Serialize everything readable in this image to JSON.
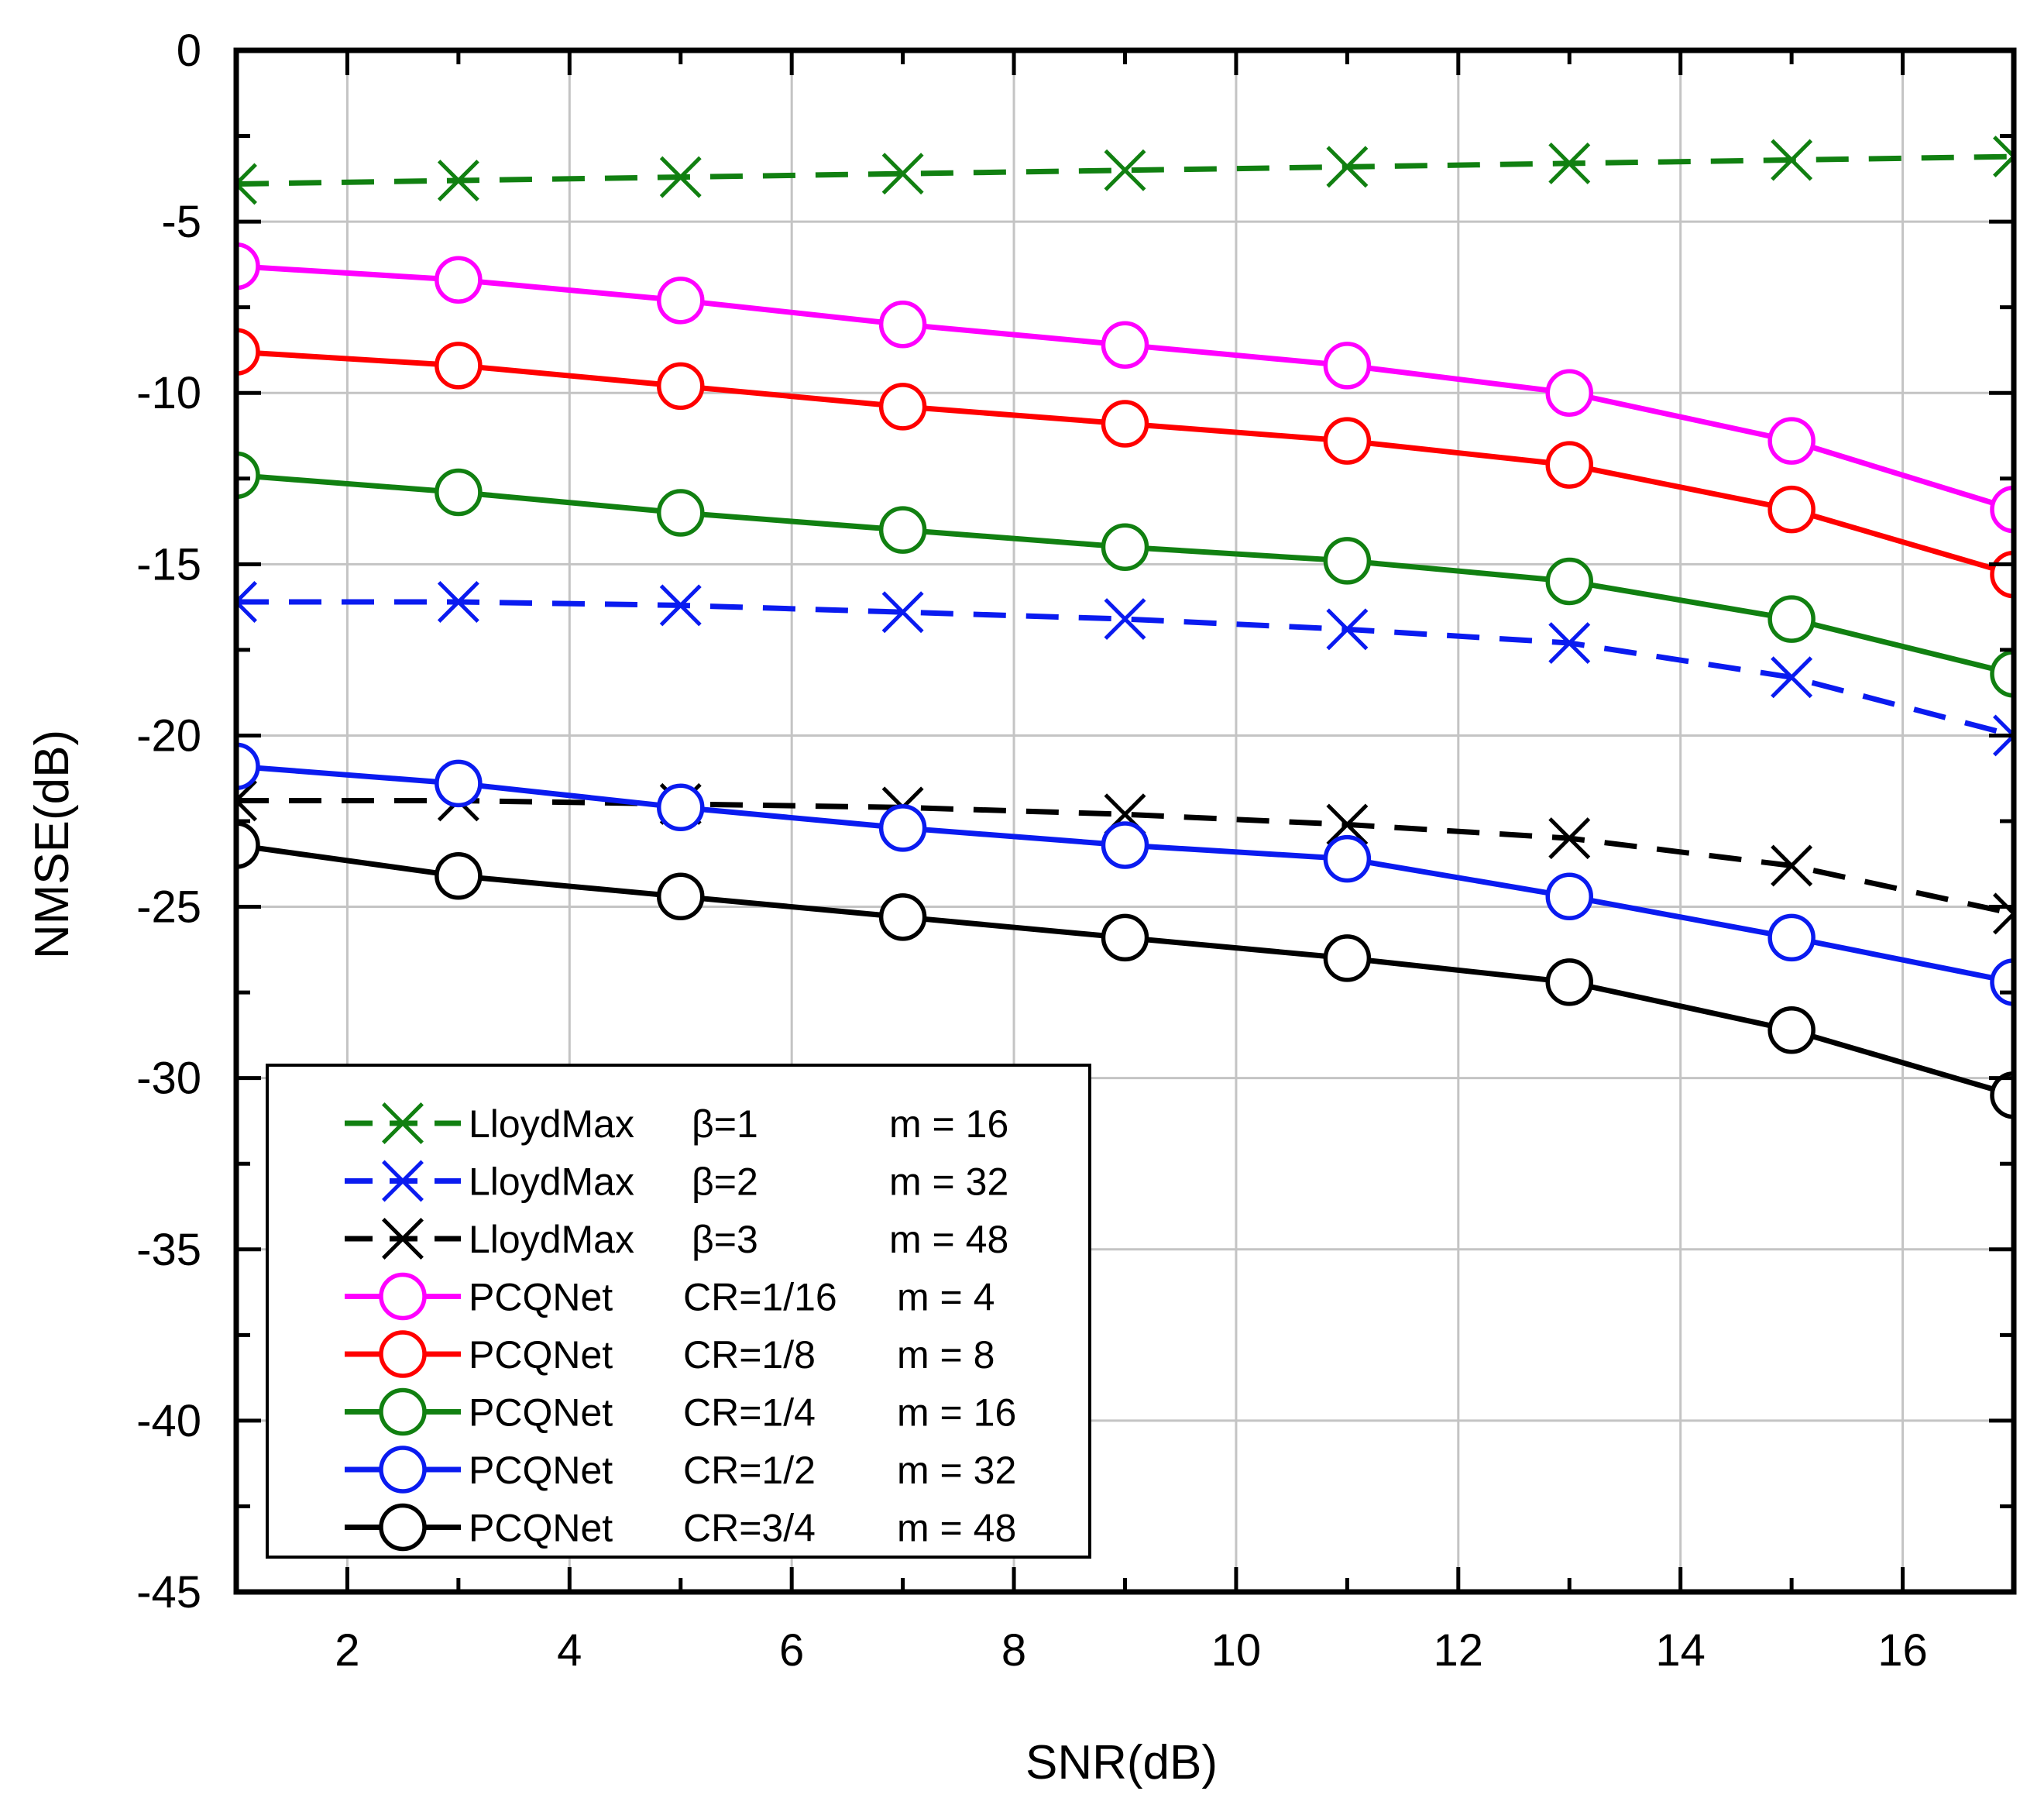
{
  "chart_data": {
    "type": "line",
    "title": "",
    "xlabel": "SNR(dB)",
    "ylabel": "NMSE(dB)",
    "xlim": [
      1,
      17
    ],
    "ylim": [
      -45,
      0
    ],
    "xticks": [
      2,
      4,
      6,
      8,
      10,
      12,
      14,
      16
    ],
    "xtick_labels": [
      "2",
      "4",
      "6",
      "8",
      "10",
      "12",
      "14",
      "16"
    ],
    "yticks": [
      0,
      -5,
      -10,
      -15,
      -20,
      -25,
      -30,
      -35,
      -40,
      -45
    ],
    "ytick_labels": [
      "0",
      "-5",
      "-10",
      "-15",
      "-20",
      "-25",
      "-30",
      "-35",
      "-40",
      "-45"
    ],
    "grid": true,
    "legend_position": "bottom-left",
    "x": [
      1,
      3,
      5,
      7,
      9,
      11,
      13,
      15,
      17
    ],
    "series": [
      {
        "name": "LloydMax β=1 m = 16",
        "method": "LloydMax",
        "param": "β=1",
        "m": "m = 16",
        "color": "#118011",
        "dash": true,
        "marker": "x",
        "values": [
          -3.9,
          -3.8,
          -3.7,
          -3.6,
          -3.5,
          -3.4,
          -3.3,
          -3.2,
          -3.1
        ]
      },
      {
        "name": "LloydMax β=2 m = 32",
        "method": "LloydMax",
        "param": "β=2",
        "m": "m = 32",
        "color": "#0a1bf0",
        "dash": true,
        "marker": "x",
        "values": [
          -16.1,
          -16.1,
          -16.2,
          -16.4,
          -16.6,
          -16.9,
          -17.3,
          -18.3,
          -20.0
        ]
      },
      {
        "name": "LloydMax β=3 m = 48",
        "method": "LloydMax",
        "param": "β=3",
        "m": "m = 48",
        "color": "#000000",
        "dash": true,
        "marker": "x",
        "values": [
          -21.9,
          -21.9,
          -22.0,
          -22.1,
          -22.3,
          -22.6,
          -23.0,
          -23.8,
          -25.2
        ]
      },
      {
        "name": "PCQNet CR=1/16 m = 4",
        "method": "PCQNet",
        "param": "CR=1/16",
        "m": "m = 4",
        "color": "#ff00ff",
        "dash": false,
        "marker": "o",
        "values": [
          -6.3,
          -6.7,
          -7.3,
          -8.0,
          -8.6,
          -9.2,
          -10.0,
          -11.4,
          -13.4
        ]
      },
      {
        "name": "PCQNet CR=1/8 m = 8",
        "method": "PCQNet",
        "param": "CR=1/8",
        "m": "m = 8",
        "color": "#ff0000",
        "dash": false,
        "marker": "o",
        "values": [
          -8.8,
          -9.2,
          -9.8,
          -10.4,
          -10.9,
          -11.4,
          -12.1,
          -13.4,
          -15.3
        ]
      },
      {
        "name": "PCQNet CR=1/4 m = 16",
        "method": "PCQNet",
        "param": "CR=1/4",
        "m": "m = 16",
        "color": "#118011",
        "dash": false,
        "marker": "o",
        "values": [
          -12.4,
          -12.9,
          -13.5,
          -14.0,
          -14.5,
          -14.9,
          -15.5,
          -16.6,
          -18.2
        ]
      },
      {
        "name": "PCQNet CR=1/2 m = 32",
        "method": "PCQNet",
        "param": "CR=1/2",
        "m": "m = 32",
        "color": "#0a1bf0",
        "dash": false,
        "marker": "o",
        "values": [
          -20.9,
          -21.4,
          -22.1,
          -22.7,
          -23.2,
          -23.6,
          -24.7,
          -25.9,
          -27.2
        ]
      },
      {
        "name": "PCQNet CR=3/4 m = 48",
        "method": "PCQNet",
        "param": "CR=3/4",
        "m": "m = 48",
        "color": "#000000",
        "dash": false,
        "marker": "o",
        "values": [
          -23.2,
          -24.1,
          -24.7,
          -25.3,
          -25.9,
          -26.5,
          -27.2,
          -28.6,
          -30.5
        ]
      }
    ]
  }
}
